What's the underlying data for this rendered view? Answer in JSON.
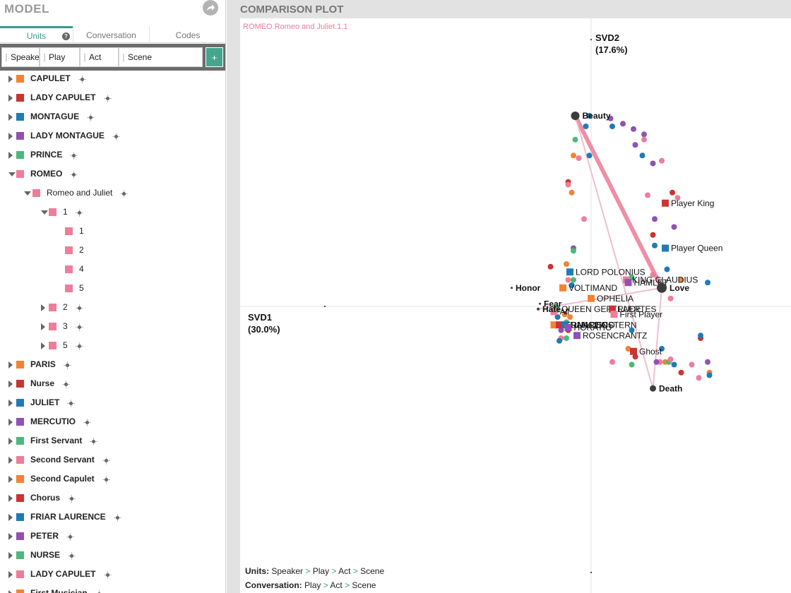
{
  "model": {
    "title": "MODEL",
    "tabs": {
      "units": "Units",
      "conversation": "Conversation",
      "codes": "Codes"
    },
    "help": "?",
    "unit_chips": [
      "Speaker",
      "Play",
      "Act",
      "Scene"
    ],
    "add_label": "+"
  },
  "tree": [
    {
      "label": "CAPULET",
      "color": "#f58231",
      "level": 0,
      "arrow": "right",
      "bold": true
    },
    {
      "label": "LADY CAPULET",
      "color": "#cc3333",
      "level": 0,
      "arrow": "right",
      "bold": true
    },
    {
      "label": "MONTAGUE",
      "color": "#1f7ab8",
      "level": 0,
      "arrow": "right",
      "bold": true
    },
    {
      "label": "LADY MONTAGUE",
      "color": "#9151b3",
      "level": 0,
      "arrow": "right",
      "bold": true
    },
    {
      "label": "PRINCE",
      "color": "#4cb87a",
      "level": 0,
      "arrow": "right",
      "bold": true
    },
    {
      "label": "ROMEO",
      "color": "#ee7d99",
      "level": 0,
      "arrow": "down",
      "bold": true
    },
    {
      "label": "Romeo and Juliet",
      "color": "#ee7d99",
      "level": 1,
      "arrow": "down",
      "bold": false
    },
    {
      "label": "1",
      "color": "#ee7d99",
      "level": 2,
      "arrow": "down",
      "bold": false
    },
    {
      "label": "1",
      "color": "#ee7d99",
      "level": 3,
      "arrow": "none",
      "bold": false,
      "nocross": true
    },
    {
      "label": "2",
      "color": "#ee7d99",
      "level": 3,
      "arrow": "none",
      "bold": false,
      "nocross": true
    },
    {
      "label": "4",
      "color": "#ee7d99",
      "level": 3,
      "arrow": "none",
      "bold": false,
      "nocross": true
    },
    {
      "label": "5",
      "color": "#ee7d99",
      "level": 3,
      "arrow": "none",
      "bold": false,
      "nocross": true
    },
    {
      "label": "2",
      "color": "#ee7d99",
      "level": 2,
      "arrow": "right",
      "bold": false
    },
    {
      "label": "3",
      "color": "#ee7d99",
      "level": 2,
      "arrow": "right",
      "bold": false
    },
    {
      "label": "5",
      "color": "#ee7d99",
      "level": 2,
      "arrow": "right",
      "bold": false
    },
    {
      "label": "PARIS",
      "color": "#f58231",
      "level": 0,
      "arrow": "right",
      "bold": true
    },
    {
      "label": "Nurse",
      "color": "#cc3333",
      "level": 0,
      "arrow": "right",
      "bold": true
    },
    {
      "label": "JULIET",
      "color": "#1f7ab8",
      "level": 0,
      "arrow": "right",
      "bold": true
    },
    {
      "label": "MERCUTIO",
      "color": "#9151b3",
      "level": 0,
      "arrow": "right",
      "bold": true
    },
    {
      "label": "First Servant",
      "color": "#4cb87a",
      "level": 0,
      "arrow": "right",
      "bold": true
    },
    {
      "label": "Second Servant",
      "color": "#ee7d99",
      "level": 0,
      "arrow": "right",
      "bold": true
    },
    {
      "label": "Second Capulet",
      "color": "#f58231",
      "level": 0,
      "arrow": "right",
      "bold": true
    },
    {
      "label": "Chorus",
      "color": "#cc3333",
      "level": 0,
      "arrow": "right",
      "bold": true
    },
    {
      "label": "FRIAR LAURENCE",
      "color": "#1f7ab8",
      "level": 0,
      "arrow": "right",
      "bold": true
    },
    {
      "label": "PETER",
      "color": "#9151b3",
      "level": 0,
      "arrow": "right",
      "bold": true
    },
    {
      "label": "NURSE",
      "color": "#4cb87a",
      "level": 0,
      "arrow": "right",
      "bold": true
    },
    {
      "label": "LADY CAPULET",
      "color": "#ee7d99",
      "level": 0,
      "arrow": "right",
      "bold": true
    },
    {
      "label": "First Musician",
      "color": "#f58231",
      "level": 0,
      "arrow": "right",
      "bold": true
    }
  ],
  "plot": {
    "title": "COMPARISON PLOT",
    "selected_unit": "ROMEO.Romeo and Juliet.1.1",
    "selected_color": "#ee7d99",
    "footer": {
      "units_key": "Units:",
      "units_path": [
        "Speaker",
        "Play",
        "Act",
        "Scene"
      ],
      "conv_key": "Conversation:",
      "conv_path": [
        "Play",
        "Act",
        "Scene"
      ]
    }
  },
  "chart_data": {
    "type": "scatter",
    "xlabel": "SVD1",
    "xlabel_pct": "(30.0%)",
    "ylabel": "SVD2",
    "ylabel_pct": "(17.6%)",
    "xlim": [
      -1.0,
      1.2
    ],
    "ylim": [
      -1.0,
      1.0
    ],
    "codes": [
      {
        "name": "Beauty",
        "x": -0.09,
        "y": 0.72
      },
      {
        "name": "Love",
        "x": 0.4,
        "y": 0.07
      },
      {
        "name": "Death",
        "x": 0.35,
        "y": -0.31
      },
      {
        "name": "Honor",
        "x": -0.45,
        "y": 0.07
      },
      {
        "name": "Fear",
        "x": -0.29,
        "y": 0.01
      },
      {
        "name": "Hate",
        "x": -0.3,
        "y": -0.01
      }
    ],
    "edges": [
      {
        "from": "Beauty",
        "to": "Love",
        "weight": 6
      },
      {
        "from": "Beauty",
        "to": "Death",
        "weight": 2
      },
      {
        "from": "Love",
        "to": "Death",
        "weight": 2
      },
      {
        "from": "Love",
        "to": "Hate",
        "weight": 2
      }
    ],
    "labeled_points": [
      {
        "name": "Player King",
        "x": 0.42,
        "y": 0.39,
        "color": "#cc3333"
      },
      {
        "name": "Player Queen",
        "x": 0.42,
        "y": 0.22,
        "color": "#1f7ab8"
      },
      {
        "name": "LORD POLONIUS",
        "x": -0.12,
        "y": 0.13,
        "color": "#1f7ab8"
      },
      {
        "name": "KING CLAUDIUS",
        "x": 0.2,
        "y": 0.1,
        "color": "#ee7d99"
      },
      {
        "name": "HAMLET",
        "x": 0.21,
        "y": 0.09,
        "color": "#9151b3"
      },
      {
        "name": "VOLTIMAND",
        "x": -0.16,
        "y": 0.07,
        "color": "#f58231"
      },
      {
        "name": "OPHELIA",
        "x": 0.0,
        "y": 0.03,
        "color": "#f58231"
      },
      {
        "name": "QUEEN GERTRUDE",
        "x": -0.2,
        "y": -0.01,
        "color": "#4cb87a"
      },
      {
        "name": "LAERTES",
        "x": 0.12,
        "y": -0.01,
        "color": "#cc3333"
      },
      {
        "name": "First Player",
        "x": 0.13,
        "y": -0.03,
        "color": "#ee7d99"
      },
      {
        "name": "All",
        "x": -0.21,
        "y": -0.02,
        "color": "#ee7d99"
      },
      {
        "name": "BERNARDO",
        "x": -0.21,
        "y": -0.07,
        "color": "#f58231"
      },
      {
        "name": "FRANCISCO",
        "x": -0.18,
        "y": -0.07,
        "color": "#cc3333"
      },
      {
        "name": "GUILDENSTERN",
        "x": -0.15,
        "y": -0.07,
        "color": "#1f7ab8"
      },
      {
        "name": "HORATIO",
        "x": -0.13,
        "y": -0.08,
        "color": "#9151b3"
      },
      {
        "name": "ROSENCRANTZ",
        "x": -0.08,
        "y": -0.11,
        "color": "#9151b3"
      },
      {
        "name": "Ghost",
        "x": 0.24,
        "y": -0.17,
        "color": "#cc3333"
      }
    ],
    "points": [
      {
        "x": -0.01,
        "y": 0.72,
        "c": "#1f7ab8"
      },
      {
        "x": -0.03,
        "y": 0.68,
        "c": "#1f7ab8"
      },
      {
        "x": 0.11,
        "y": 0.71,
        "c": "#9151b3"
      },
      {
        "x": 0.12,
        "y": 0.68,
        "c": "#1f7ab8"
      },
      {
        "x": 0.18,
        "y": 0.69,
        "c": "#9151b3"
      },
      {
        "x": 0.24,
        "y": 0.67,
        "c": "#9151b3"
      },
      {
        "x": 0.3,
        "y": 0.65,
        "c": "#9151b3"
      },
      {
        "x": 0.3,
        "y": 0.63,
        "c": "#ee7d99"
      },
      {
        "x": 0.25,
        "y": 0.61,
        "c": "#9151b3"
      },
      {
        "x": -0.09,
        "y": 0.63,
        "c": "#4cb87a"
      },
      {
        "x": -0.1,
        "y": 0.57,
        "c": "#f58231"
      },
      {
        "x": -0.07,
        "y": 0.56,
        "c": "#ee7d99"
      },
      {
        "x": -0.01,
        "y": 0.57,
        "c": "#1f7ab8"
      },
      {
        "x": 0.29,
        "y": 0.57,
        "c": "#1f7ab8"
      },
      {
        "x": 0.35,
        "y": 0.54,
        "c": "#9151b3"
      },
      {
        "x": 0.4,
        "y": 0.55,
        "c": "#ee7d99"
      },
      {
        "x": -0.13,
        "y": 0.47,
        "c": "#cc3333"
      },
      {
        "x": -0.13,
        "y": 0.46,
        "c": "#ee7d99"
      },
      {
        "x": -0.11,
        "y": 0.43,
        "c": "#f58231"
      },
      {
        "x": 0.32,
        "y": 0.42,
        "c": "#ee7d99"
      },
      {
        "x": 0.46,
        "y": 0.43,
        "c": "#cc3333"
      },
      {
        "x": 0.49,
        "y": 0.41,
        "c": "#ee7d99"
      },
      {
        "x": -0.04,
        "y": 0.33,
        "c": "#ee7d99"
      },
      {
        "x": 0.36,
        "y": 0.33,
        "c": "#9151b3"
      },
      {
        "x": 0.47,
        "y": 0.3,
        "c": "#9151b3"
      },
      {
        "x": 0.35,
        "y": 0.27,
        "c": "#cc3333"
      },
      {
        "x": 0.36,
        "y": 0.23,
        "c": "#1f7ab8"
      },
      {
        "x": -0.1,
        "y": 0.22,
        "c": "#9151b3"
      },
      {
        "x": -0.1,
        "y": 0.21,
        "c": "#4cb87a"
      },
      {
        "x": -0.23,
        "y": 0.15,
        "c": "#cc3333"
      },
      {
        "x": -0.14,
        "y": 0.16,
        "c": "#f58231"
      },
      {
        "x": 0.43,
        "y": 0.14,
        "c": "#1f7ab8"
      },
      {
        "x": 0.35,
        "y": 0.12,
        "c": "#ee7d99"
      },
      {
        "x": 0.51,
        "y": 0.1,
        "c": "#f58231"
      },
      {
        "x": 0.66,
        "y": 0.09,
        "c": "#1f7ab8"
      },
      {
        "x": -0.13,
        "y": 0.1,
        "c": "#ee7d99"
      },
      {
        "x": -0.1,
        "y": 0.1,
        "c": "#4cb87a"
      },
      {
        "x": -0.11,
        "y": 0.08,
        "c": "#1f7ab8"
      },
      {
        "x": 0.23,
        "y": 0.11,
        "c": "#4cb87a"
      },
      {
        "x": 0.45,
        "y": 0.03,
        "c": "#ee7d99"
      },
      {
        "x": -0.15,
        "y": -0.03,
        "c": "#f58231"
      },
      {
        "x": -0.12,
        "y": -0.04,
        "c": "#f58231"
      },
      {
        "x": -0.19,
        "y": -0.04,
        "c": "#1f7ab8"
      },
      {
        "x": -0.14,
        "y": -0.06,
        "c": "#4cb87a"
      },
      {
        "x": -0.17,
        "y": -0.09,
        "c": "#9151b3"
      },
      {
        "x": -0.13,
        "y": -0.09,
        "c": "#cc3333"
      },
      {
        "x": -0.17,
        "y": -0.12,
        "c": "#ee7d99"
      },
      {
        "x": -0.18,
        "y": -0.13,
        "c": "#1f7ab8"
      },
      {
        "x": -0.14,
        "y": -0.12,
        "c": "#4cb87a"
      },
      {
        "x": 0.23,
        "y": -0.09,
        "c": "#1f7ab8"
      },
      {
        "x": 0.21,
        "y": -0.16,
        "c": "#f58231"
      },
      {
        "x": 0.25,
        "y": -0.19,
        "c": "#cc3333"
      },
      {
        "x": 0.12,
        "y": -0.21,
        "c": "#ee7d99"
      },
      {
        "x": 0.23,
        "y": -0.22,
        "c": "#4cb87a"
      },
      {
        "x": 0.4,
        "y": -0.16,
        "c": "#1f7ab8"
      },
      {
        "x": 0.39,
        "y": -0.21,
        "c": "#ee7d99"
      },
      {
        "x": 0.37,
        "y": -0.21,
        "c": "#9151b3"
      },
      {
        "x": 0.42,
        "y": -0.21,
        "c": "#f58231"
      },
      {
        "x": 0.44,
        "y": -0.21,
        "c": "#4cb87a"
      },
      {
        "x": 0.45,
        "y": -0.2,
        "c": "#ee7d99"
      },
      {
        "x": 0.47,
        "y": -0.22,
        "c": "#1f7ab8"
      },
      {
        "x": 0.51,
        "y": -0.25,
        "c": "#cc3333"
      },
      {
        "x": 0.57,
        "y": -0.22,
        "c": "#ee7d99"
      },
      {
        "x": 0.61,
        "y": -0.27,
        "c": "#ee7d99"
      },
      {
        "x": 0.66,
        "y": -0.21,
        "c": "#9151b3"
      },
      {
        "x": 0.62,
        "y": -0.12,
        "c": "#cc3333"
      },
      {
        "x": 0.62,
        "y": -0.11,
        "c": "#1f7ab8"
      },
      {
        "x": 0.67,
        "y": -0.25,
        "c": "#f58231"
      },
      {
        "x": 0.67,
        "y": -0.26,
        "c": "#1f7ab8"
      }
    ]
  }
}
